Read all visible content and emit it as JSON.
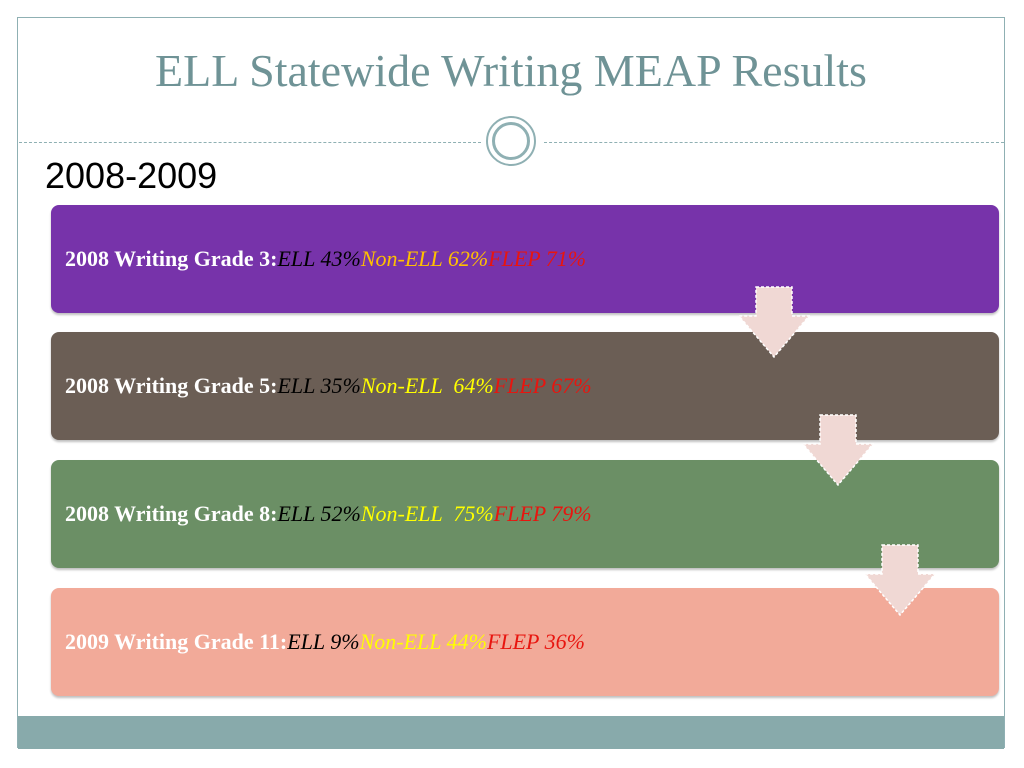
{
  "slide": {
    "title": "ELL Statewide Writing MEAP Results",
    "subtitle": "2008-2009"
  },
  "rows": [
    {
      "label": "2008 Writing Grade 3:",
      "ell": "ELL 43%",
      "non_ell": "Non-ELL 62%",
      "flep": "FLEP 71%",
      "bg_color": "#7733aa",
      "ell_color": "#000000",
      "non_ell_color": "#ffc000"
    },
    {
      "label": "2008 Writing Grade 5:",
      "ell": "ELL 35%",
      "non_ell": "Non-ELL  64%",
      "flep": "FLEP 67%",
      "bg_color": "#6b5e55",
      "ell_color": "#000000",
      "non_ell_color": "#ffff00"
    },
    {
      "label": "2008 Writing Grade 8:",
      "ell": "ELL 52%",
      "non_ell": "Non-ELL  75%",
      "flep": "FLEP 79%",
      "bg_color": "#6b8f65",
      "ell_color": "#000000",
      "non_ell_color": "#ffff00"
    },
    {
      "label": "2009 Writing Grade 11:",
      "ell": "ELL 9%",
      "non_ell": "Non-ELL 44%",
      "flep": "FLEP 36%",
      "bg_color": "#f2aa99",
      "ell_color": "#000000",
      "non_ell_color": "#ffff00"
    }
  ],
  "colors": {
    "title": "#6f9396",
    "frame": "#8fb0b3",
    "footer_band": "#88aaab",
    "flep": "#e8150f",
    "arrow": "#f0d8d4"
  },
  "icons": [
    "down-arrow-icon",
    "divider-circle-icon"
  ]
}
